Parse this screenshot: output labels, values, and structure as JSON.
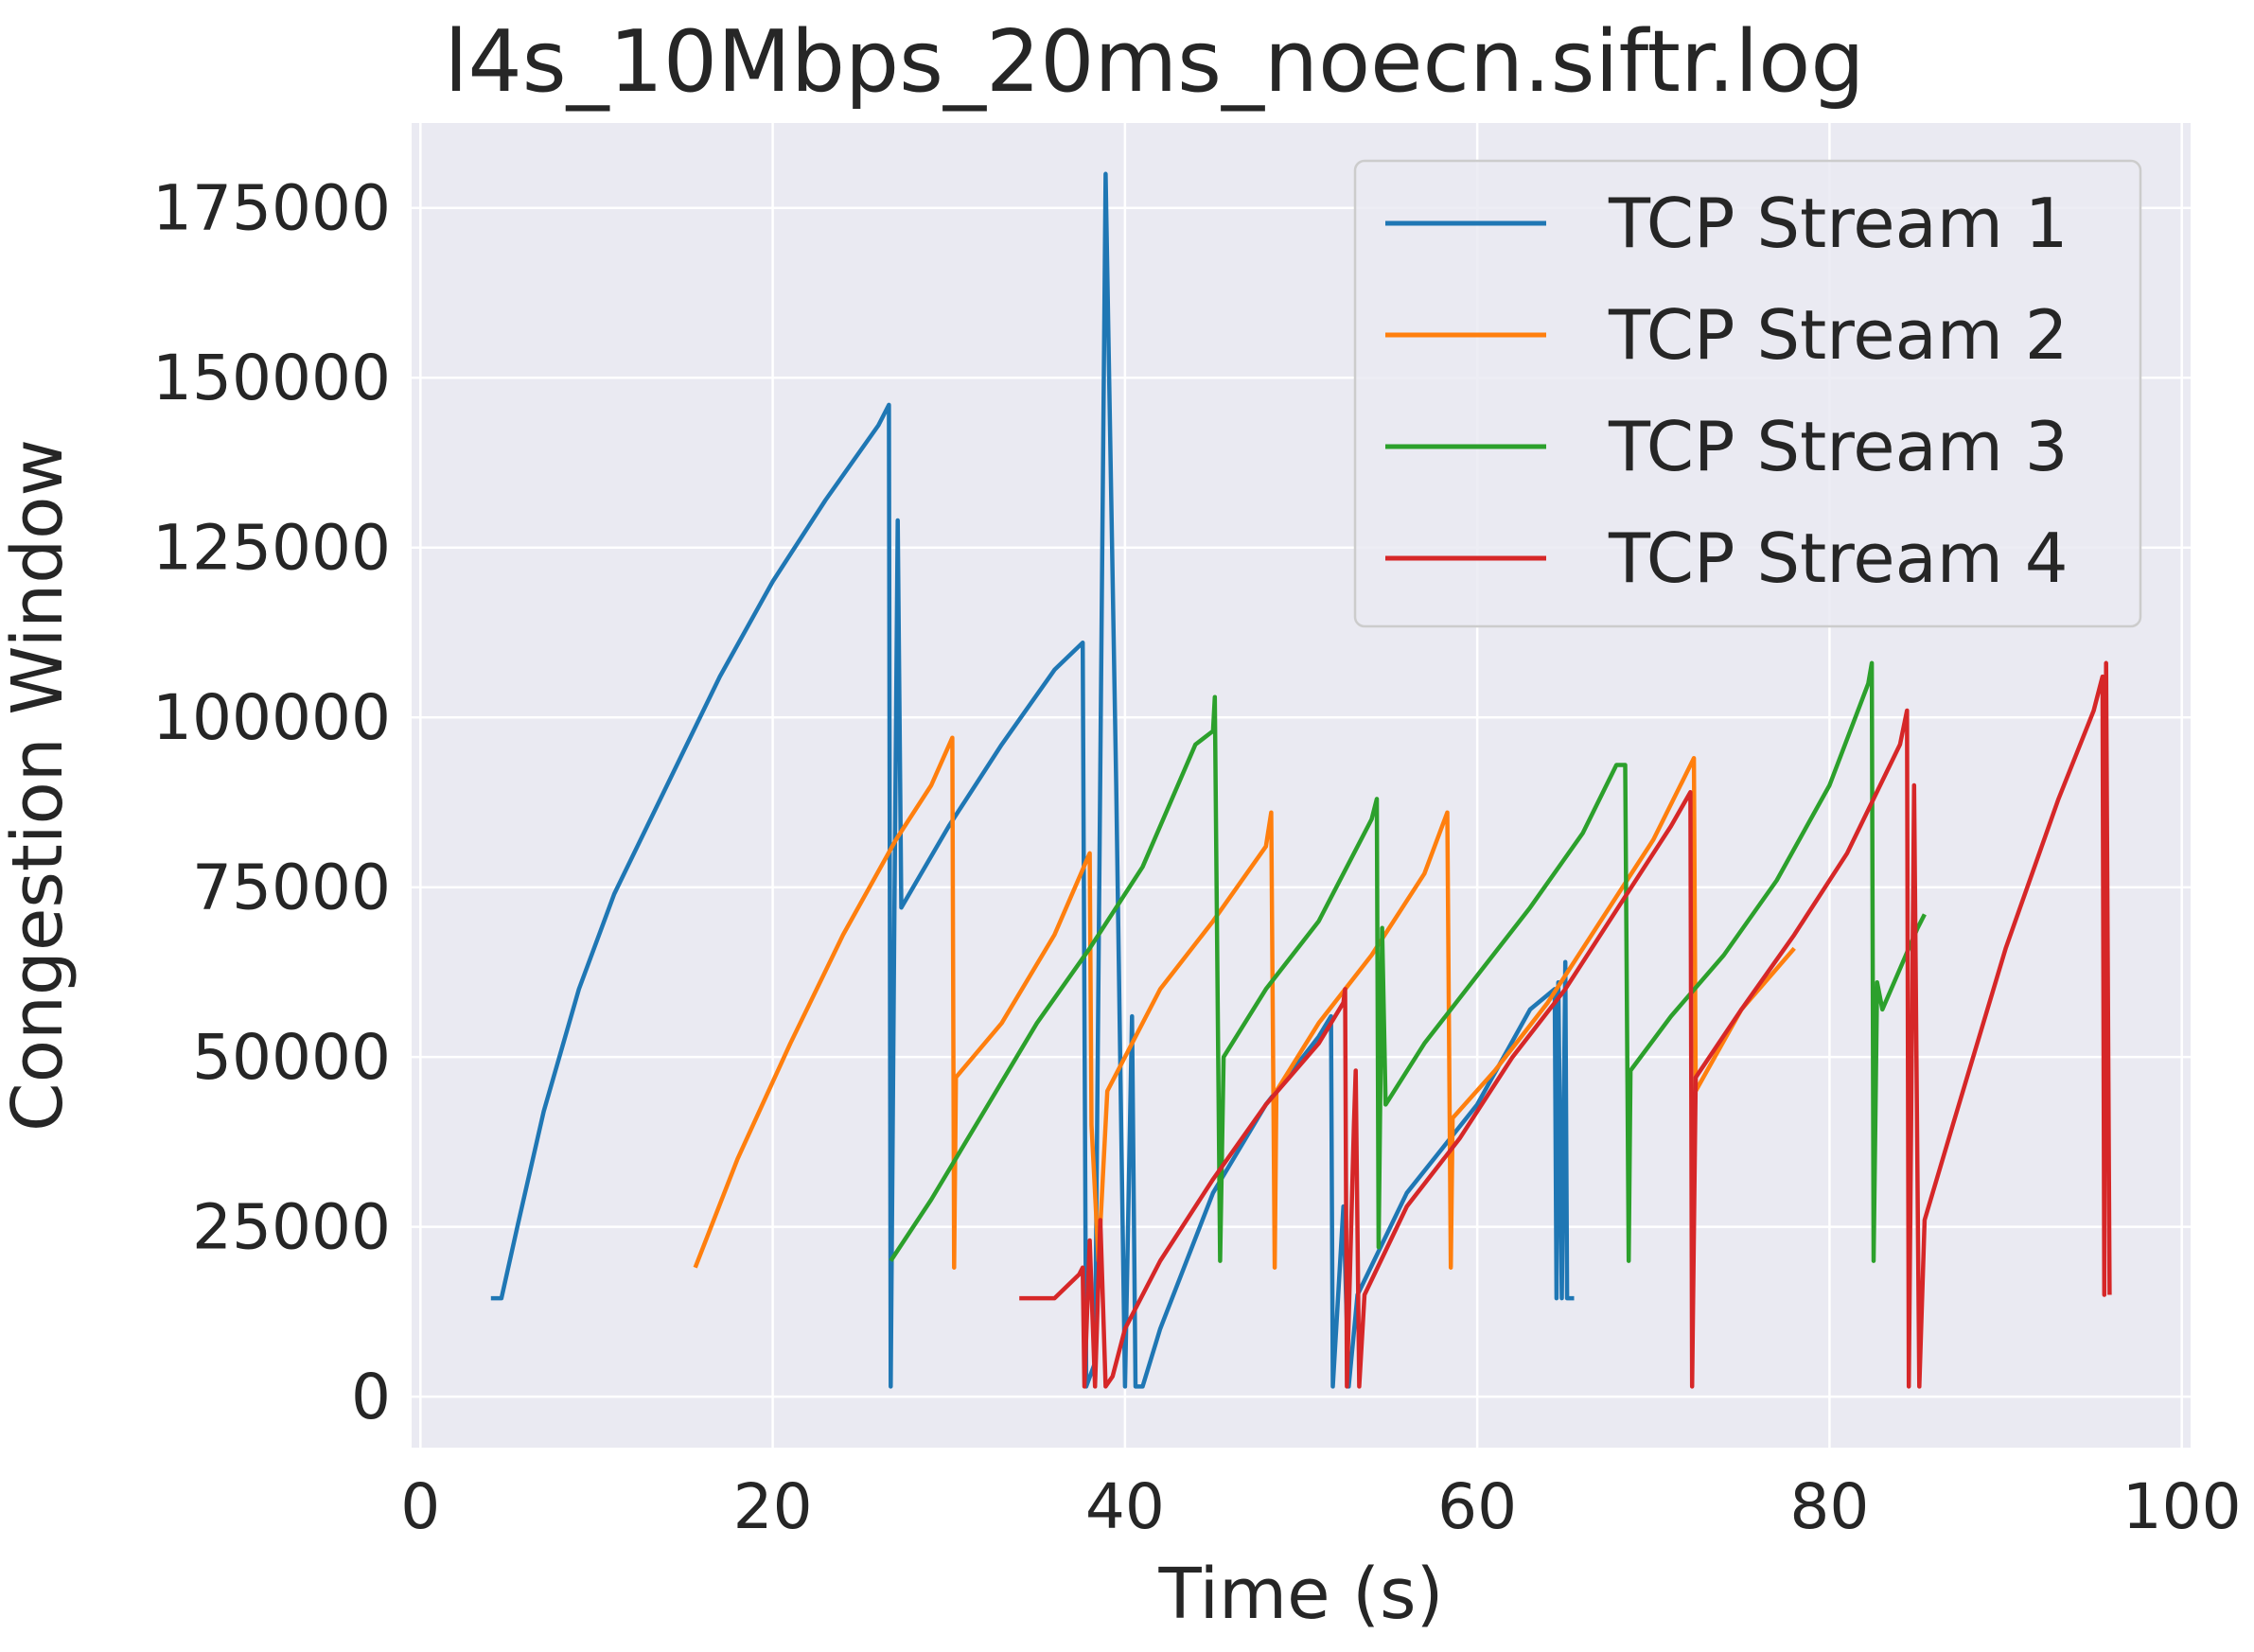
{
  "chart_data": {
    "type": "line",
    "title": "l4s_10Mbps_20ms_noecn.siftr.log",
    "xlabel": "Time (s)",
    "ylabel": "Congestion Window",
    "xlim": [
      -0.5,
      100.5
    ],
    "ylim": [
      -7500,
      187500
    ],
    "xticks": [
      0,
      20,
      40,
      60,
      80,
      100
    ],
    "xtick_labels": [
      "0",
      "20",
      "40",
      "60",
      "80",
      "100"
    ],
    "yticks": [
      0,
      25000,
      50000,
      75000,
      100000,
      125000,
      150000,
      175000
    ],
    "ytick_labels": [
      "0",
      "25000",
      "50000",
      "75000",
      "100000",
      "125000",
      "150000",
      "175000"
    ],
    "grid": true,
    "legend_position": "top-right",
    "background": "#eaeaf2",
    "series": [
      {
        "name": "TCP Stream 1",
        "color": "#1f77b4",
        "points": [
          [
            4.0,
            14500
          ],
          [
            4.6,
            14500
          ],
          [
            5.5,
            25000
          ],
          [
            7,
            42000
          ],
          [
            9,
            60000
          ],
          [
            11,
            74000
          ],
          [
            14,
            90000
          ],
          [
            17,
            106000
          ],
          [
            20,
            120000
          ],
          [
            23,
            132000
          ],
          [
            26,
            143000
          ],
          [
            26.6,
            146000
          ],
          [
            26.7,
            1500
          ],
          [
            26.9,
            68000
          ],
          [
            27.1,
            129000
          ],
          [
            27.3,
            72000
          ],
          [
            30,
            84000
          ],
          [
            33,
            96000
          ],
          [
            36,
            107000
          ],
          [
            37.6,
            111000
          ],
          [
            37.8,
            1500
          ],
          [
            38.3,
            5000
          ],
          [
            38.9,
            180000
          ],
          [
            39.5,
            90000
          ],
          [
            40.0,
            1500
          ],
          [
            40.4,
            56000
          ],
          [
            40.6,
            1500
          ],
          [
            41.0,
            1500
          ],
          [
            42,
            10000
          ],
          [
            45,
            30000
          ],
          [
            48,
            43000
          ],
          [
            51,
            53000
          ],
          [
            51.7,
            56000
          ],
          [
            51.8,
            1500
          ],
          [
            52.4,
            28000
          ],
          [
            52.7,
            1500
          ],
          [
            53.2,
            15000
          ],
          [
            56,
            30000
          ],
          [
            60,
            43000
          ],
          [
            63,
            57000
          ],
          [
            64.4,
            60000
          ],
          [
            64.5,
            14500
          ],
          [
            64.6,
            61000
          ],
          [
            64.8,
            14500
          ],
          [
            65.0,
            64000
          ],
          [
            65.1,
            14500
          ],
          [
            65.5,
            14500
          ]
        ]
      },
      {
        "name": "TCP Stream 2",
        "color": "#ff7f0e",
        "points": [
          [
            15.6,
            19000
          ],
          [
            18,
            35000
          ],
          [
            21,
            52000
          ],
          [
            24,
            68000
          ],
          [
            27,
            82000
          ],
          [
            29,
            90000
          ],
          [
            30.2,
            97000
          ],
          [
            30.3,
            19000
          ],
          [
            30.4,
            47000
          ],
          [
            33,
            55000
          ],
          [
            36,
            68000
          ],
          [
            38,
            80000
          ],
          [
            38.1,
            40000
          ],
          [
            38.5,
            20000
          ],
          [
            39,
            45000
          ],
          [
            42,
            60000
          ],
          [
            45,
            70000
          ],
          [
            48,
            81000
          ],
          [
            48.3,
            86000
          ],
          [
            48.5,
            19000
          ],
          [
            48.6,
            45000
          ],
          [
            51,
            55000
          ],
          [
            54,
            65000
          ],
          [
            57,
            77000
          ],
          [
            58.3,
            86000
          ],
          [
            58.5,
            19000
          ],
          [
            58.6,
            41000
          ],
          [
            61,
            48000
          ],
          [
            64,
            58000
          ],
          [
            67,
            70000
          ],
          [
            70,
            82000
          ],
          [
            72.3,
            94000
          ],
          [
            72.4,
            45000
          ],
          [
            75,
            57000
          ],
          [
            78,
            66000
          ]
        ]
      },
      {
        "name": "TCP Stream 3",
        "color": "#2ca02c",
        "points": [
          [
            26.7,
            20000
          ],
          [
            29,
            29000
          ],
          [
            32,
            42000
          ],
          [
            35,
            55000
          ],
          [
            38,
            66000
          ],
          [
            41,
            78000
          ],
          [
            44,
            96000
          ],
          [
            45.0,
            98000
          ],
          [
            45.1,
            103000
          ],
          [
            45.4,
            20000
          ],
          [
            45.6,
            50000
          ],
          [
            48,
            60000
          ],
          [
            51,
            70000
          ],
          [
            54,
            85000
          ],
          [
            54.3,
            88000
          ],
          [
            54.4,
            22000
          ],
          [
            54.6,
            69000
          ],
          [
            54.8,
            43000
          ],
          [
            57,
            52000
          ],
          [
            60,
            62000
          ],
          [
            63,
            72000
          ],
          [
            66,
            83000
          ],
          [
            67.9,
            93000
          ],
          [
            68.4,
            93000
          ],
          [
            68.6,
            20000
          ],
          [
            68.7,
            48000
          ],
          [
            71,
            56000
          ],
          [
            74,
            65000
          ],
          [
            77,
            76000
          ],
          [
            80,
            90000
          ],
          [
            82.2,
            105000
          ],
          [
            82.4,
            108000
          ],
          [
            82.5,
            20000
          ],
          [
            82.7,
            61000
          ],
          [
            83,
            57000
          ],
          [
            85,
            69000
          ],
          [
            85.4,
            71000
          ]
        ]
      },
      {
        "name": "TCP Stream 4",
        "color": "#d62728",
        "points": [
          [
            34.0,
            14500
          ],
          [
            36,
            14500
          ],
          [
            37.4,
            18000
          ],
          [
            37.6,
            19000
          ],
          [
            37.7,
            1500
          ],
          [
            38.0,
            23000
          ],
          [
            38.3,
            1500
          ],
          [
            38.6,
            26000
          ],
          [
            38.9,
            1500
          ],
          [
            39.3,
            3000
          ],
          [
            40,
            10000
          ],
          [
            42,
            20000
          ],
          [
            45,
            32000
          ],
          [
            48,
            43000
          ],
          [
            51,
            52000
          ],
          [
            52.4,
            58000
          ],
          [
            52.5,
            60000
          ],
          [
            52.6,
            1500
          ],
          [
            53.0,
            40000
          ],
          [
            53.1,
            48000
          ],
          [
            53.3,
            1500
          ],
          [
            53.6,
            15000
          ],
          [
            56,
            28000
          ],
          [
            59,
            38000
          ],
          [
            62,
            50000
          ],
          [
            65,
            60000
          ],
          [
            68,
            72000
          ],
          [
            71,
            84000
          ],
          [
            72.1,
            89000
          ],
          [
            72.2,
            1500
          ],
          [
            72.4,
            47000
          ],
          [
            75,
            57000
          ],
          [
            78,
            68000
          ],
          [
            81,
            80000
          ],
          [
            84,
            96000
          ],
          [
            84.4,
            101000
          ],
          [
            84.5,
            1500
          ],
          [
            84.8,
            90000
          ],
          [
            85.1,
            1500
          ],
          [
            85.4,
            26000
          ],
          [
            87,
            40000
          ],
          [
            90,
            66000
          ],
          [
            93,
            88000
          ],
          [
            95,
            101000
          ],
          [
            95.5,
            106000
          ],
          [
            95.6,
            15000
          ],
          [
            95.7,
            108000
          ],
          [
            95.9,
            15000
          ]
        ]
      }
    ]
  }
}
